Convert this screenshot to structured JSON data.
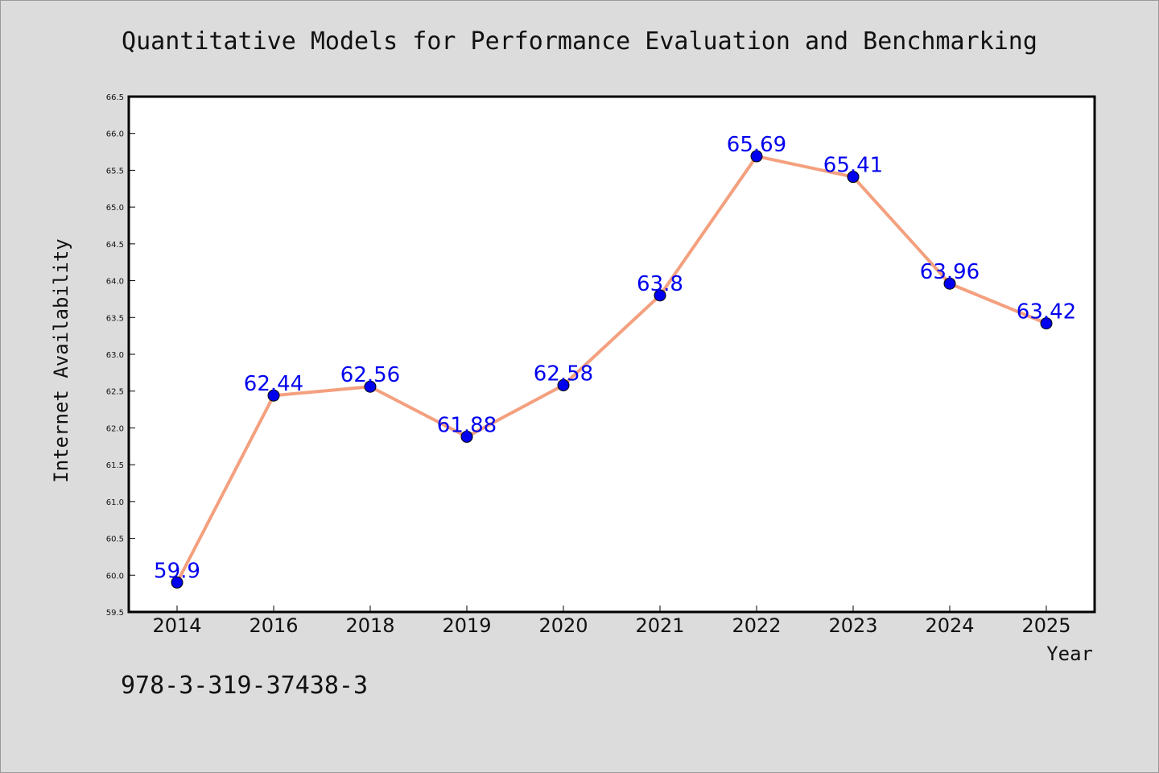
{
  "page": {
    "title": "Quantitative Models for Performance Evaluation and Benchmarking",
    "isbn": "978-3-319-37438-3"
  },
  "chart_data": {
    "type": "line",
    "title": "Quantitative Models for Performance Evaluation and Benchmarking",
    "xlabel": "Year",
    "ylabel": "Internet Availability",
    "categories": [
      "2014",
      "2016",
      "2018",
      "2019",
      "2020",
      "2021",
      "2022",
      "2023",
      "2024",
      "2025"
    ],
    "values": [
      59.9,
      62.44,
      62.56,
      61.88,
      62.58,
      63.8,
      65.69,
      65.41,
      63.96,
      63.42
    ],
    "data_labels": [
      "59.9",
      "62.44",
      "62.56",
      "61.88",
      "62.58",
      "63.8",
      "65.69",
      "65.41",
      "63.96",
      "63.42"
    ],
    "ylim": [
      59.5,
      66.5
    ],
    "yticks": [
      "59.5",
      "60.0",
      "60.5",
      "61.0",
      "61.5",
      "62.0",
      "62.5",
      "63.0",
      "63.5",
      "64.0",
      "64.5",
      "65.0",
      "65.5",
      "66.0",
      "66.5"
    ],
    "grid": false,
    "line_color": "#f4a07f",
    "marker_color": "#0000ee",
    "label_color": "#0000ee"
  }
}
